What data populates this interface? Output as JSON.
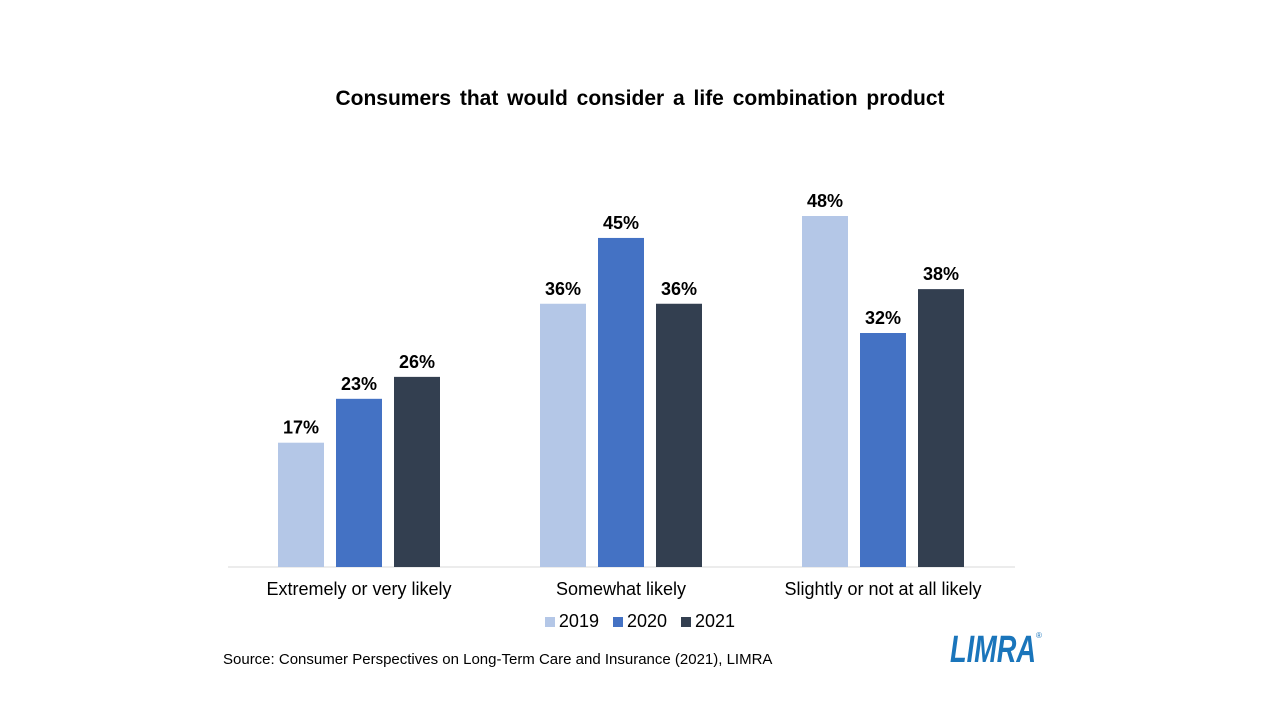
{
  "chart_data": {
    "type": "bar",
    "title": "Consumers that would consider a life combination product",
    "categories": [
      "Extremely or very likely",
      "Somewhat likely",
      "Slightly or not at all likely"
    ],
    "series": [
      {
        "name": "2019",
        "values": [
          17,
          36,
          48
        ],
        "labels": [
          "17%",
          "36%",
          "48%"
        ],
        "color": "#b4c7e7"
      },
      {
        "name": "2020",
        "values": [
          23,
          45,
          32
        ],
        "labels": [
          "23%",
          "45%",
          "32%"
        ],
        "color": "#4472c4"
      },
      {
        "name": "2021",
        "values": [
          26,
          36,
          38
        ],
        "labels": [
          "26%",
          "36%",
          "38%"
        ],
        "color": "#333f50"
      }
    ],
    "ylim": [
      0,
      48
    ],
    "grid": false,
    "legend_position": "bottom"
  },
  "source": "Source: Consumer Perspectives on Long-Term Care and Insurance  (2021), LIMRA",
  "logo": {
    "text": "LIMRA",
    "registered": "®",
    "color": "#1a75bb"
  }
}
